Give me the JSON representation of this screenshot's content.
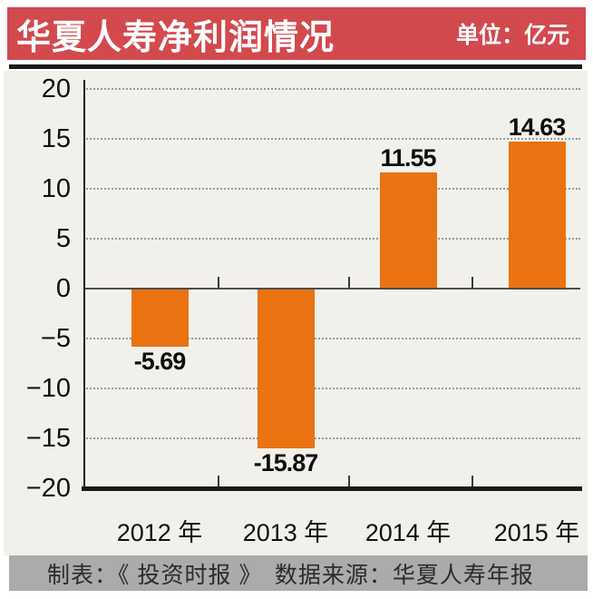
{
  "header": {
    "title": "华夏人寿净利润情况",
    "unit_label": "单位：亿元"
  },
  "chart_data": {
    "type": "bar",
    "title": "华夏人寿净利润情况",
    "unit": "亿元",
    "categories": [
      "2012 年",
      "2013 年",
      "2014 年",
      "2015 年"
    ],
    "values": [
      -5.69,
      -15.87,
      11.55,
      14.63
    ],
    "value_labels": [
      "-5.69",
      "-15.87",
      "11.55",
      "14.63"
    ],
    "xlabel": "",
    "ylabel": "",
    "ylim": [
      -20,
      20
    ],
    "yticks": [
      20,
      15,
      10,
      5,
      0,
      -5,
      -10,
      -15,
      -20
    ],
    "grid": "horizontal-dotted",
    "legend": "none",
    "bar_color": "#EA7211"
  },
  "footer": {
    "text": "制表：《 投资时报 》　数据来源：华夏人寿年报"
  },
  "colors": {
    "banner_red": "#D2494E",
    "bar_orange": "#EA7211",
    "chart_background": "#F2F0EB",
    "page_background": "#FFFFFF",
    "footer_gray": "#ACABA9",
    "grid_gray": "#999999",
    "line_black": "#1A1A1A",
    "text_black": "#111111",
    "footer_text": "#2B2B2B",
    "title_white": "#FFFFFF"
  }
}
